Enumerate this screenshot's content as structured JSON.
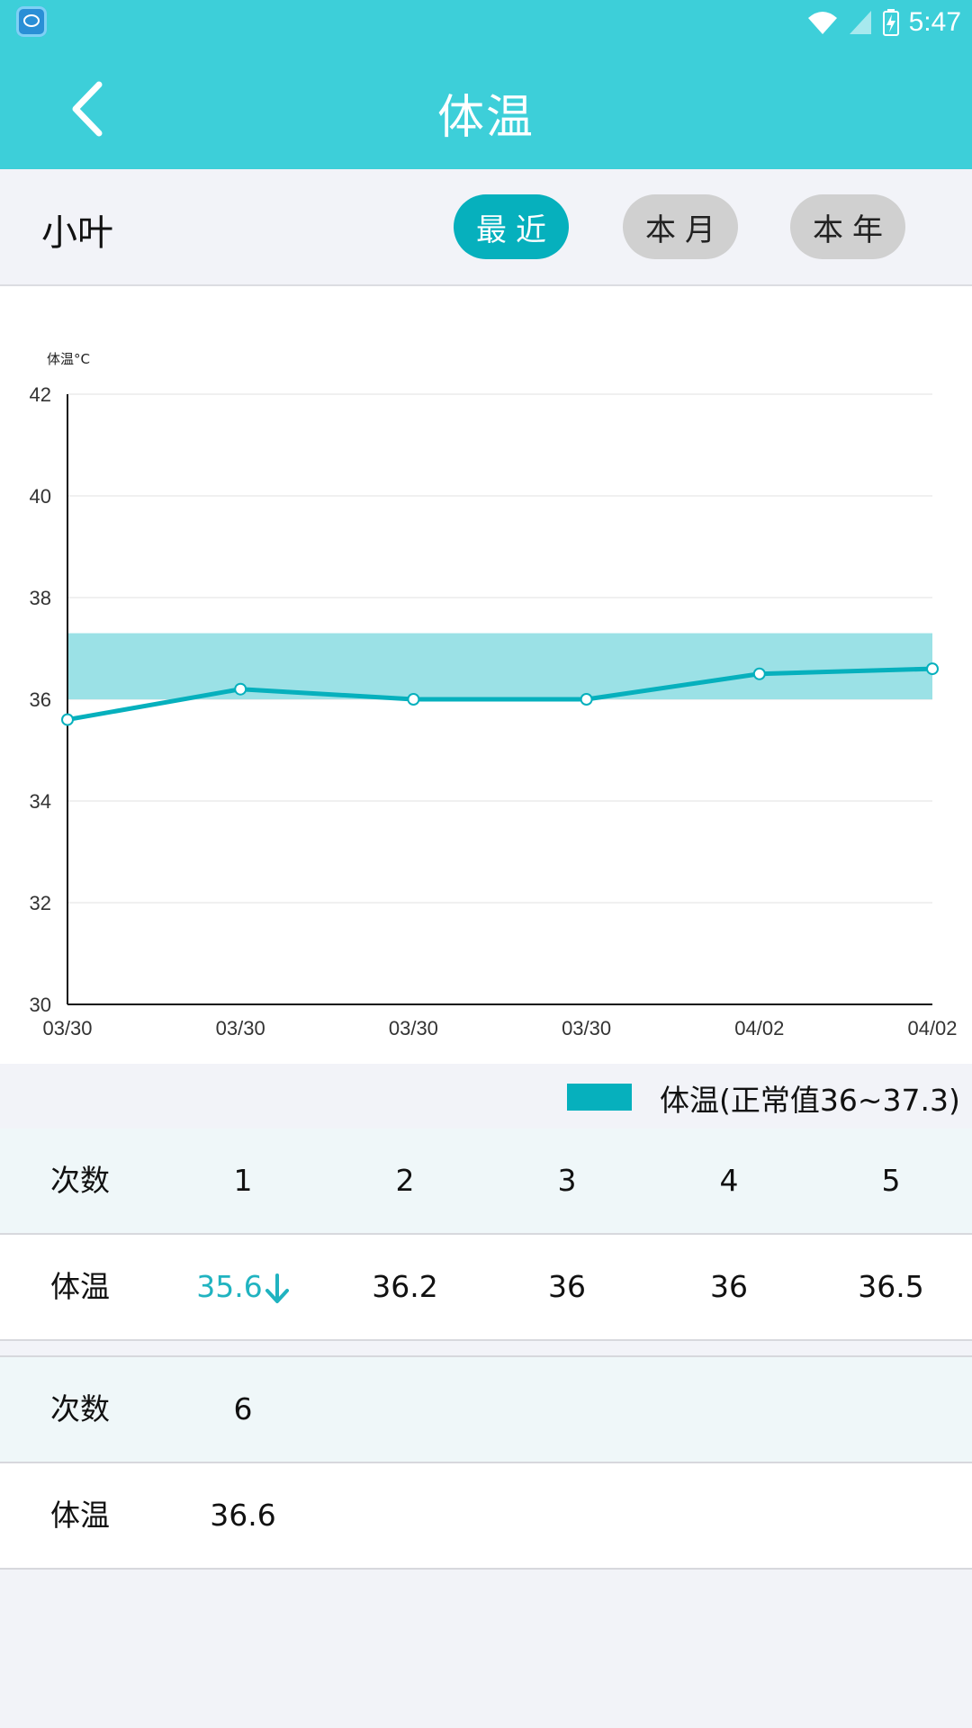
{
  "status_bar": {
    "time": "5:47"
  },
  "header": {
    "title": "体温",
    "back_icon": "chevron-left-icon"
  },
  "filter": {
    "user": "小叶",
    "options": [
      "最近",
      "本月",
      "本年"
    ],
    "selected": "最近"
  },
  "colors": {
    "accent": "#3dcfd9",
    "primary": "#06b0bd",
    "normal_band": "#9be1e6"
  },
  "chart_data": {
    "type": "line",
    "ylabel": "体温°C",
    "ylim": [
      30,
      42
    ],
    "yticks": [
      "42",
      "40",
      "38",
      "36",
      "34",
      "32",
      "30"
    ],
    "x": [
      "03/30",
      "03/30",
      "03/30",
      "03/30",
      "04/02",
      "04/02"
    ],
    "series": [
      {
        "values": [
          35.6,
          36.2,
          36,
          36,
          36.5,
          36.6
        ]
      }
    ],
    "normal_range": [
      36,
      37.3
    ],
    "grid": true
  },
  "legend": {
    "label": "体温(正常值36~37.3)"
  },
  "table": [
    {
      "count_label": "次数",
      "counts": [
        "1",
        "2",
        "3",
        "4",
        "5"
      ],
      "temp_label": "体温",
      "temps": [
        "35.6",
        "36.2",
        "36",
        "36",
        "36.5"
      ],
      "low_flags": [
        true,
        false,
        false,
        false,
        false
      ]
    },
    {
      "count_label": "次数",
      "counts": [
        "6"
      ],
      "temp_label": "体温",
      "temps": [
        "36.6"
      ],
      "low_flags": [
        false
      ]
    }
  ]
}
